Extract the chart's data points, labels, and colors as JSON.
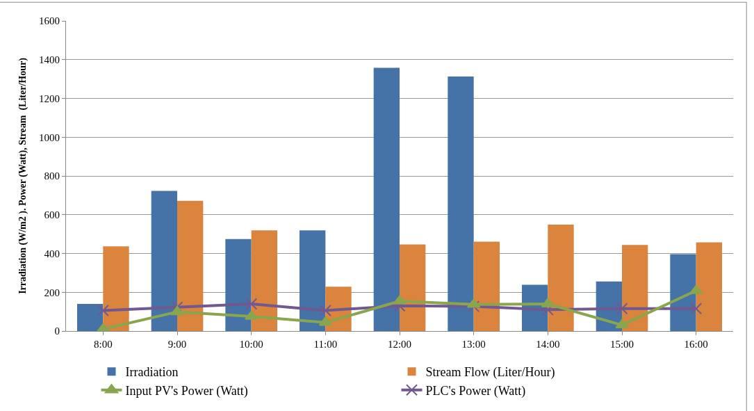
{
  "chart_data": {
    "type": "bar",
    "ylabel": "Irradiation (W/m2 ). Power (Watt), Stream  (Liter/Hour)",
    "categories": [
      "8:00",
      "9:00",
      "10:00",
      "11:00",
      "12:00",
      "13:00",
      "14:00",
      "15:00",
      "16:00"
    ],
    "series": [
      {
        "name": "Irradiation",
        "color": "#4572a7",
        "values": [
          140,
          723,
          474,
          519,
          1358,
          1313,
          239,
          256,
          396
        ]
      },
      {
        "name": "Stream Flow (Liter/Hour)",
        "color": "#db843d",
        "values": [
          437,
          672,
          519,
          229,
          447,
          461,
          549,
          444,
          457
        ]
      },
      {
        "name": "Input PV's Power (Watt)",
        "type": "line",
        "marker": "triangle",
        "color": "#89a54e",
        "values": [
          10,
          99,
          75,
          44,
          154,
          137,
          140,
          31,
          208
        ]
      },
      {
        "name": "PLC's Power (Watt)",
        "type": "line",
        "marker": "cross",
        "color": "#71588f",
        "values": [
          106,
          123,
          140,
          106,
          130,
          127,
          110,
          116,
          116
        ]
      }
    ],
    "ylim": [
      0,
      1600
    ],
    "yticks": [
      0,
      200,
      400,
      600,
      800,
      1000,
      1200,
      1400,
      1600
    ],
    "grid": "y",
    "legend": "bottom"
  }
}
